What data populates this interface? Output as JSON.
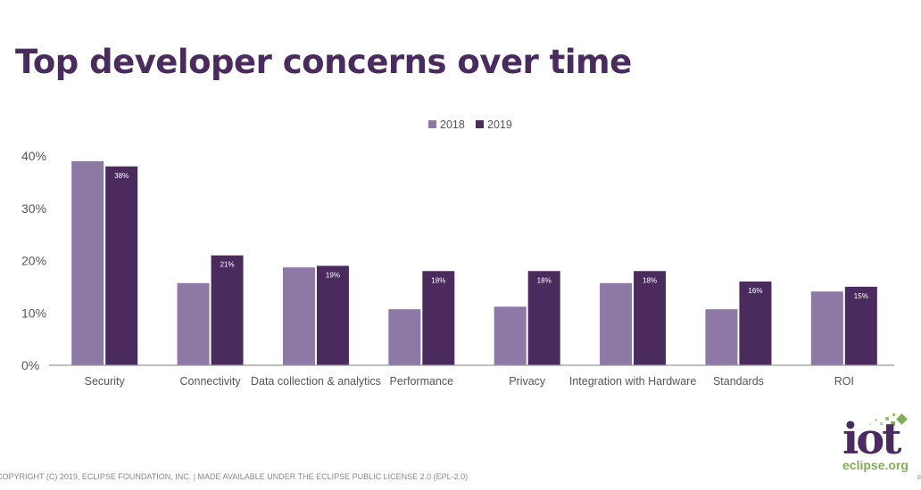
{
  "slide": {
    "title": "Top developer concerns over time",
    "footer": "COPYRIGHT (C) 2019, ECLIPSE FOUNDATION, INC. | MADE AVAILABLE UNDER THE ECLIPSE PUBLIC LICENSE 2.0 (EPL-2.0)",
    "logo": {
      "main": "iot",
      "sub": "eclipse.org"
    },
    "page_number": "8"
  },
  "colors": {
    "title": "#4a2b5e",
    "series_2018": "#8e78a6",
    "series_2019": "#4b2b5e",
    "logo_green": "#7fae56"
  },
  "chart_data": {
    "type": "bar",
    "title": "Top developer concerns over time",
    "xlabel": "",
    "ylabel": "",
    "ylim": [
      0,
      40
    ],
    "yticks": [
      0,
      10,
      20,
      30,
      40
    ],
    "ytick_labels": [
      "0%",
      "10%",
      "20%",
      "30%",
      "40%"
    ],
    "grid": false,
    "legend_position": "top-center",
    "categories": [
      "Security",
      "Connectivity",
      "Data collection & analytics",
      "Performance",
      "Privacy",
      "Integration with Hardware",
      "Standards",
      "ROI"
    ],
    "series": [
      {
        "name": "2018",
        "values": [
          39,
          15.7,
          18.7,
          10.7,
          11.2,
          15.7,
          10.7,
          14.1
        ],
        "data_labels": []
      },
      {
        "name": "2019",
        "values": [
          38,
          21,
          19,
          18,
          18,
          18,
          16,
          15
        ],
        "data_labels": [
          "38%",
          "21%",
          "19%",
          "18%",
          "18%",
          "18%",
          "16%",
          "15%"
        ]
      }
    ]
  }
}
